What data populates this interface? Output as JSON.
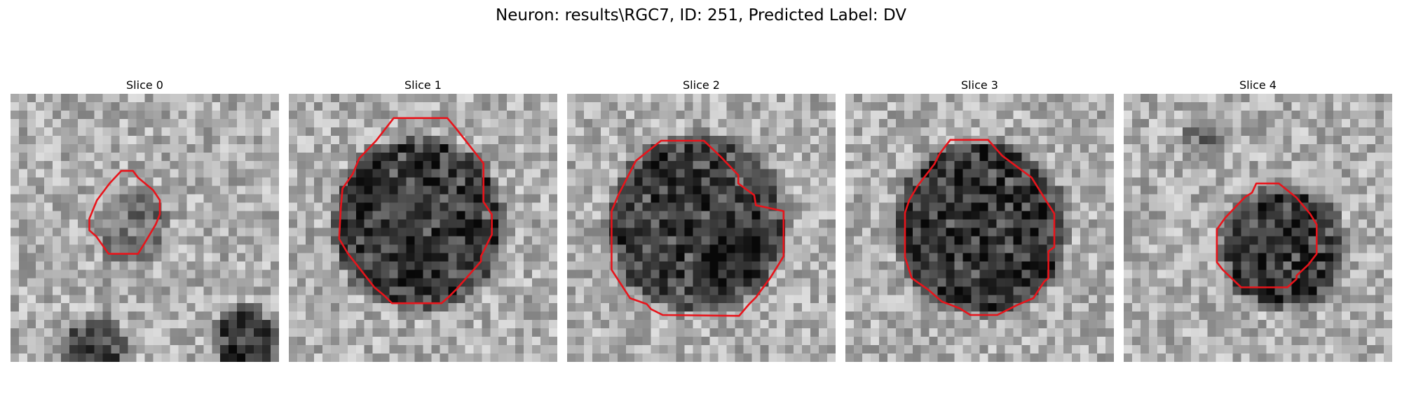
{
  "figure": {
    "title": "Neuron: results\\RGC7, ID: 251, Predicted Label: DV",
    "contour_color": "#e8141b",
    "background_color": "#ffffff",
    "colormap": "gray"
  },
  "panels": [
    {
      "title": "Slice 0",
      "image_icon": "grayscale-microscopy-slice",
      "contour_icon": "red-polygon-outline"
    },
    {
      "title": "Slice 1",
      "image_icon": "grayscale-microscopy-slice",
      "contour_icon": "red-polygon-outline"
    },
    {
      "title": "Slice 2",
      "image_icon": "grayscale-microscopy-slice",
      "contour_icon": "red-polygon-outline"
    },
    {
      "title": "Slice 3",
      "image_icon": "grayscale-microscopy-slice",
      "contour_icon": "red-polygon-outline"
    },
    {
      "title": "Slice 4",
      "image_icon": "grayscale-microscopy-slice",
      "contour_icon": "red-polygon-outline"
    }
  ]
}
